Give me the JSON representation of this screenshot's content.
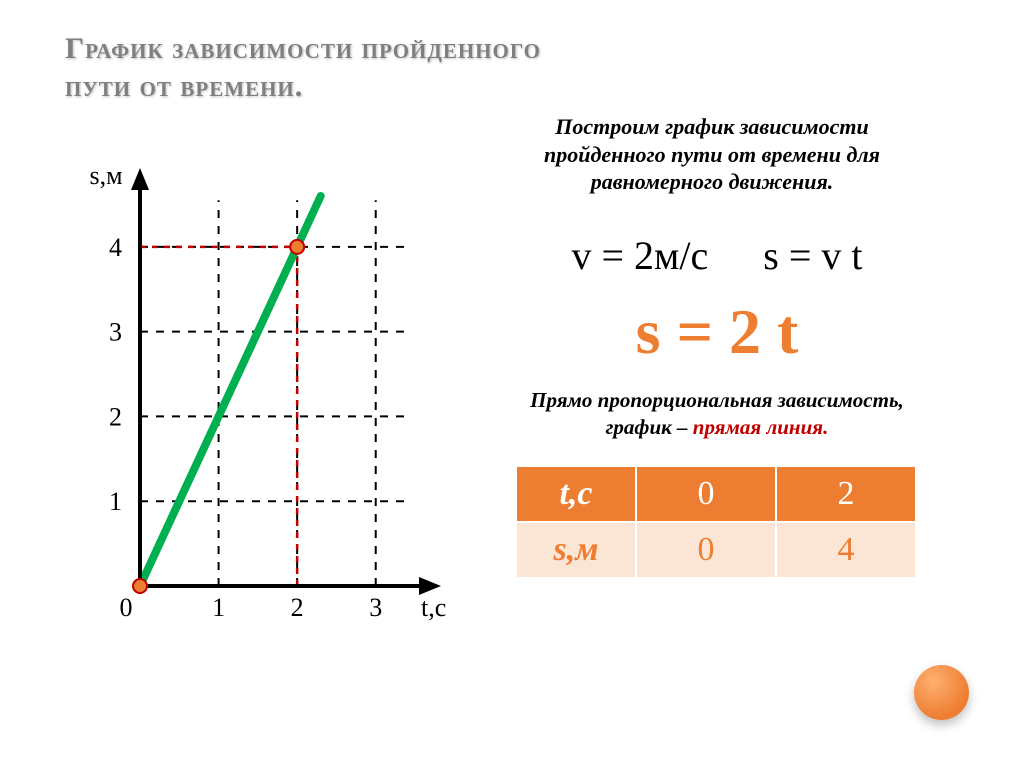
{
  "title_line1": "График зависимости пройденного",
  "title_line2": "пути от времени.",
  "intro_line1": "Построим график зависимости",
  "intro_line2": "пройденного пути от времени для",
  "intro_line3": "равномерного движения.",
  "formula_v": "v = 2м/с",
  "formula_s": "s = v t",
  "main_formula": "s = 2 t",
  "dep_line1_a": "Прямо пропорциональная зависимость,",
  "dep_line2_a": "график – ",
  "dep_line2_b": "прямая линия.",
  "table": {
    "row1": {
      "hdr": "t,c",
      "c1": "0",
      "c2": "2"
    },
    "row2": {
      "hdr": "s,м",
      "c1": "0",
      "c2": "4"
    }
  },
  "chart": {
    "type": "line",
    "y_label": "s,м",
    "x_label": "t,c",
    "origin_label": "0",
    "x_ticks": [
      1,
      2,
      3
    ],
    "y_ticks": [
      1,
      2,
      3,
      4
    ],
    "xlim": [
      0,
      3.5
    ],
    "ylim": [
      0,
      4.6
    ],
    "points": [
      {
        "x": 0,
        "y": 0
      },
      {
        "x": 2,
        "y": 4
      }
    ],
    "line_extend": {
      "x": 2.3,
      "y": 4.6
    },
    "line_color": "#00b050",
    "line_width": 8,
    "marker_fill": "#ed7d31",
    "marker_stroke": "#c00000",
    "marker_radius": 7,
    "axis_width": 4,
    "grid_dash": "8 8",
    "highlight_dash": "6 6",
    "highlight_color": "#c00000",
    "tick_fontsize": 26,
    "label_fontsize": 26,
    "background_color": "#ffffff"
  }
}
